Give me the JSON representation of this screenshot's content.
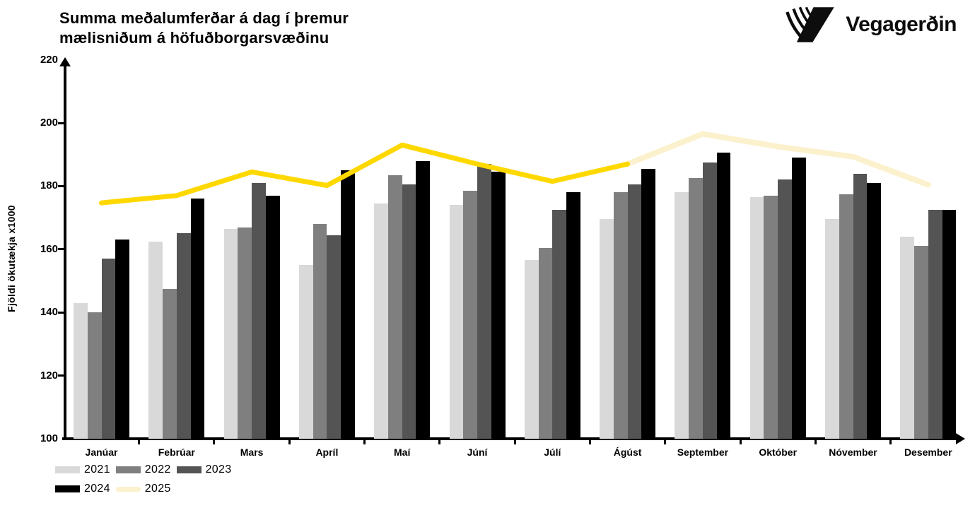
{
  "header": {
    "title_line1": "Summa meðalumferðar á dag í þremur",
    "title_line2": "mælisniðum á höfuðborgarsvæðinu",
    "brand": "Vegagerðin"
  },
  "chart_data": {
    "type": "bar",
    "title": "Summa meðalumferðar á dag í þremur mælisniðum á höfuðborgarsvæðinu",
    "xlabel": "",
    "ylabel": "Fjöldi ökutækja x1000",
    "ylim": [
      100,
      220
    ],
    "yticks": [
      100,
      120,
      140,
      160,
      180,
      200,
      220
    ],
    "grid": false,
    "legend_position": "bottom-left",
    "categories": [
      "Janúar",
      "Febrúar",
      "Mars",
      "Apríl",
      "Maí",
      "Júní",
      "Júlí",
      "Ágúst",
      "September",
      "Október",
      "Nóvember",
      "Desember"
    ],
    "series": [
      {
        "name": "2021",
        "type": "bar",
        "color": "#d9d9d9",
        "values": [
          143,
          162.5,
          166.5,
          155,
          174.5,
          174,
          156.5,
          169.5,
          178,
          176.5,
          169.5,
          164
        ]
      },
      {
        "name": "2022",
        "type": "bar",
        "color": "#7f7f7f",
        "values": [
          140,
          147.5,
          167,
          168,
          183.5,
          178.5,
          160.5,
          178,
          182.5,
          177,
          177.5,
          161
        ]
      },
      {
        "name": "2023",
        "type": "bar",
        "color": "#545454",
        "values": [
          157,
          165,
          181,
          164.5,
          180.5,
          187,
          172.5,
          180.5,
          187.5,
          182,
          184,
          172.5
        ]
      },
      {
        "name": "2024",
        "type": "bar",
        "color": "#000000",
        "values": [
          163,
          176,
          177,
          185,
          188,
          184.5,
          178,
          185.5,
          190.5,
          189,
          181,
          172.5
        ]
      },
      {
        "name": "2025",
        "type": "line",
        "color": "#ffd800",
        "projection_color": "#fbf1cd",
        "solid_through_index": 7,
        "values": [
          174.7,
          177,
          184.5,
          180.2,
          193,
          187,
          181.5,
          187,
          196.5,
          192.5,
          189.3,
          180.4
        ]
      }
    ]
  }
}
